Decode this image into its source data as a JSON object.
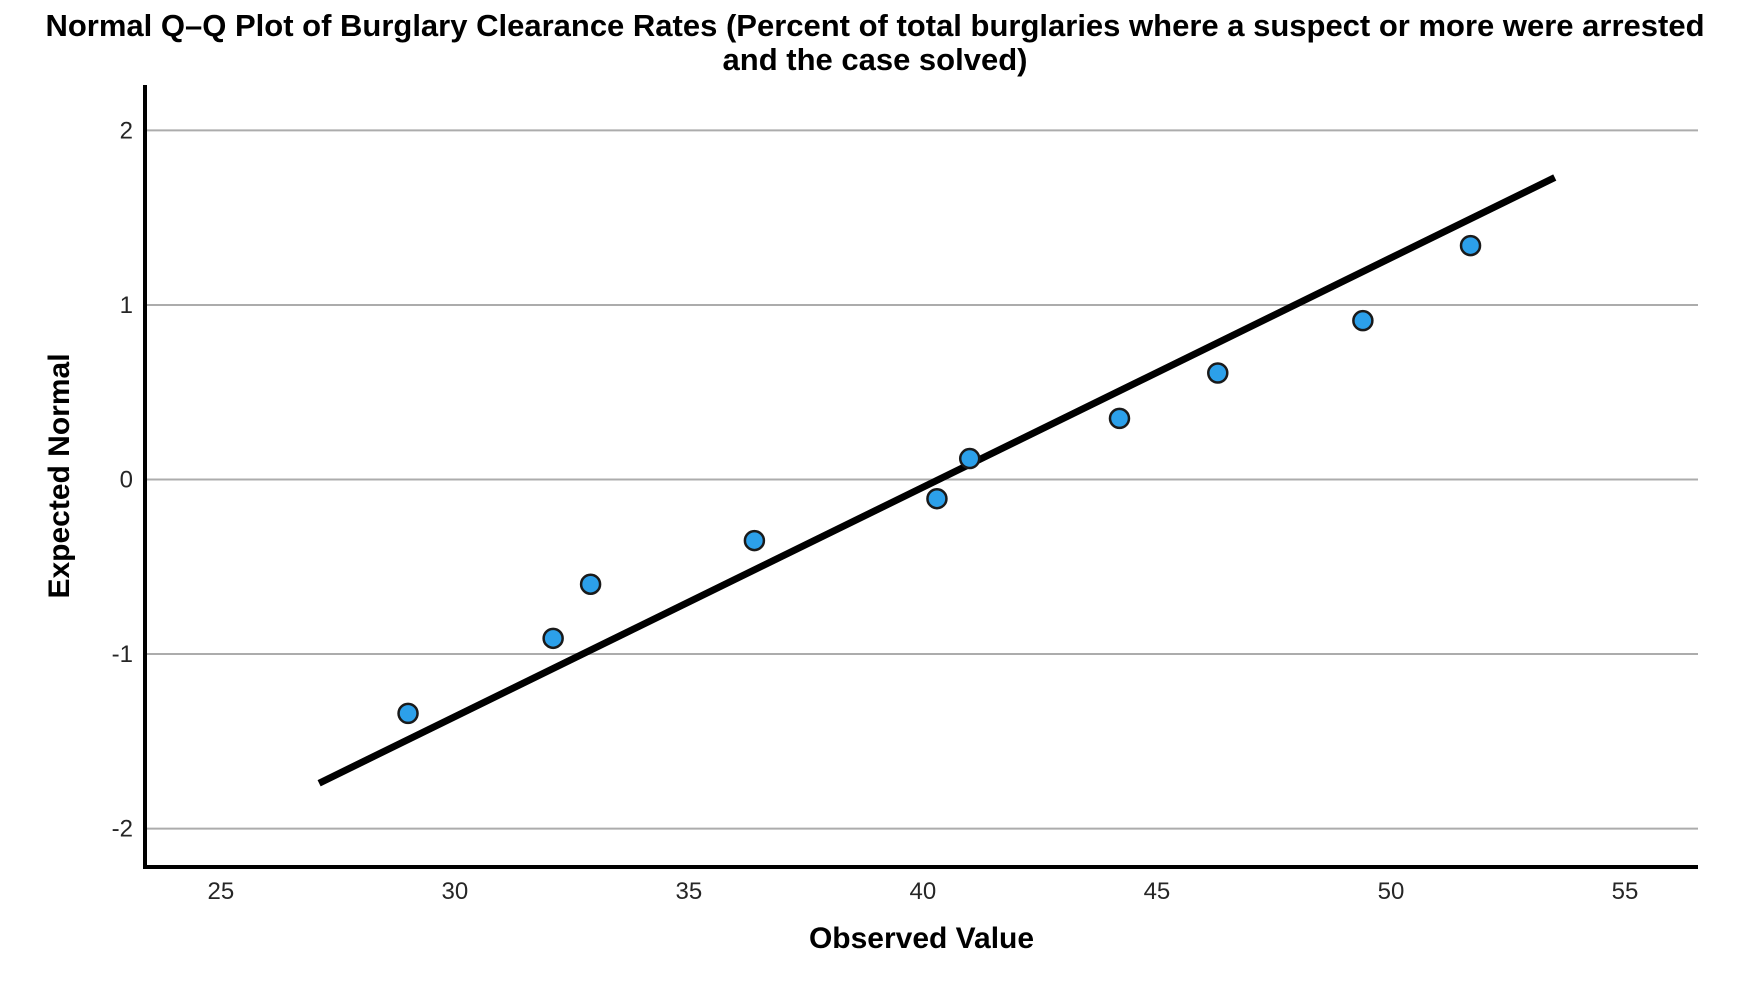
{
  "chart_data": {
    "type": "scatter",
    "variant": "normal-qq-plot",
    "title": "Normal Q–Q Plot of Burglary Clearance Rates (Percent of total burglaries where a suspect or more were arrested and the case solved)",
    "xlabel": "Observed Value",
    "ylabel": "Expected Normal",
    "xlim": [
      23.38,
      56.56
    ],
    "ylim": [
      -2.22,
      2.26
    ],
    "xticks": [
      25,
      30,
      35,
      40,
      45,
      50,
      55
    ],
    "yticks": [
      -2,
      -1,
      0,
      1,
      2
    ],
    "grid": "horizontal-only",
    "legend": "none",
    "points": [
      {
        "observed": 29.0,
        "expected_normal": -1.34
      },
      {
        "observed": 32.1,
        "expected_normal": -0.91
      },
      {
        "observed": 32.9,
        "expected_normal": -0.6
      },
      {
        "observed": 36.4,
        "expected_normal": -0.35
      },
      {
        "observed": 40.3,
        "expected_normal": -0.11
      },
      {
        "observed": 41.0,
        "expected_normal": 0.12
      },
      {
        "observed": 44.2,
        "expected_normal": 0.35
      },
      {
        "observed": 46.3,
        "expected_normal": 0.61
      },
      {
        "observed": 49.4,
        "expected_normal": 0.91
      },
      {
        "observed": 51.7,
        "expected_normal": 1.34
      }
    ],
    "reference_line": {
      "x1": 27.1,
      "y1": -1.74,
      "x2": 53.5,
      "y2": 1.73
    },
    "colors": {
      "marker_fill": "#2CA0EA",
      "marker_stroke": "#1a1a1a",
      "reference_line": "#000000",
      "grid_line": "#ACACAC",
      "axis_line": "#000000",
      "tick_label": "#262626",
      "title_text": "#000000"
    }
  }
}
